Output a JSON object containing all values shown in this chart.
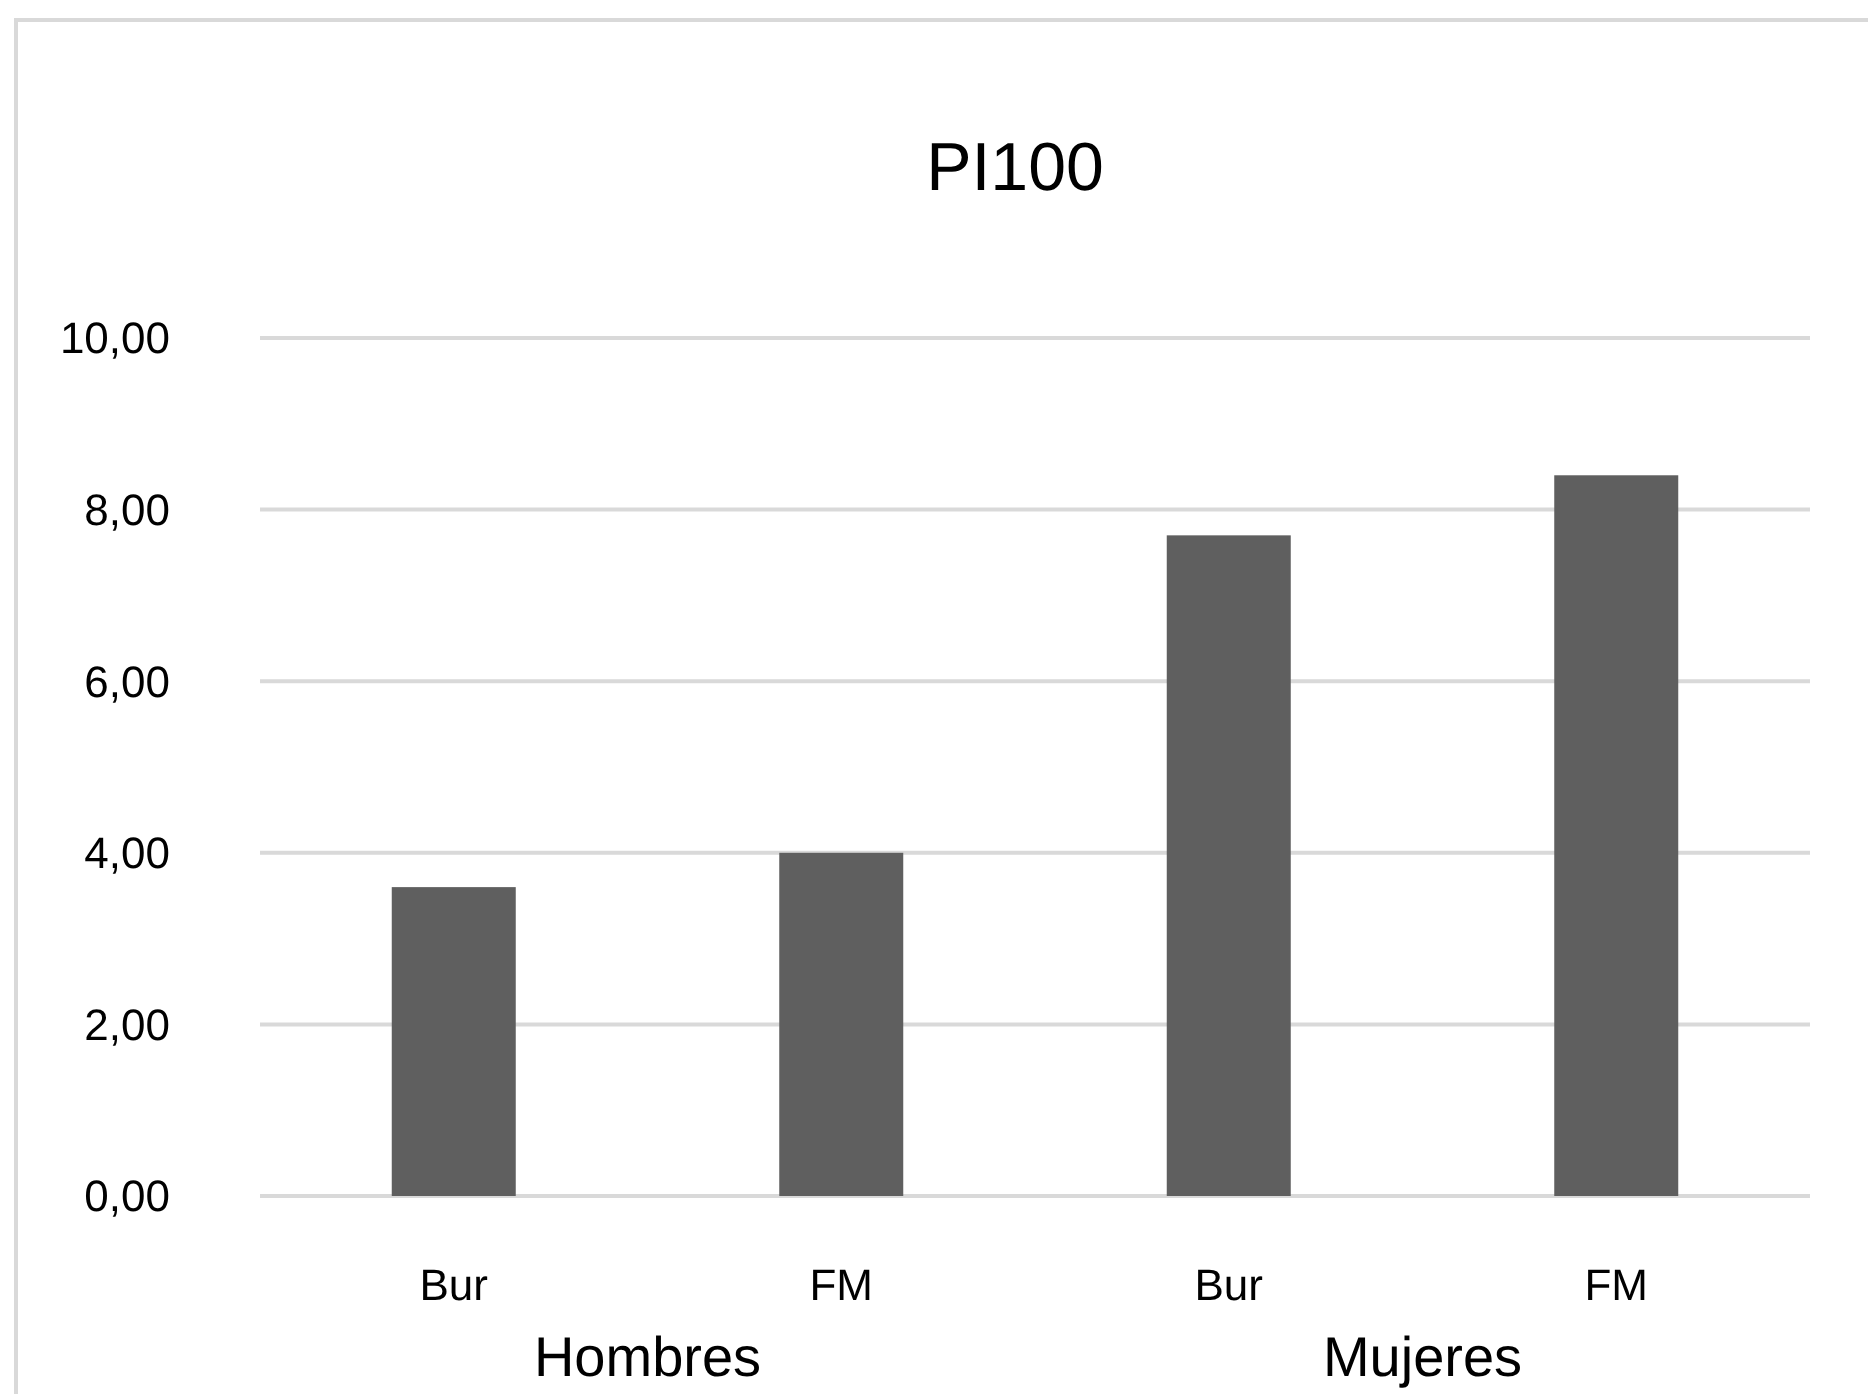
{
  "chart_data": {
    "type": "bar",
    "title": "PI100",
    "categories": [
      "Bur",
      "FM",
      "Bur",
      "FM"
    ],
    "values": [
      3.6,
      4.0,
      7.7,
      8.4
    ],
    "color": "#5f5f5f",
    "ylim": [
      0,
      10
    ],
    "yticks": [
      {
        "value": 0,
        "label": "0,00"
      },
      {
        "value": 2,
        "label": "2,00"
      },
      {
        "value": 4,
        "label": "4,00"
      },
      {
        "value": 6,
        "label": "6,00"
      },
      {
        "value": 8,
        "label": "8,00"
      },
      {
        "value": 10,
        "label": "10,00"
      }
    ],
    "grid": "y",
    "annotations": [
      "Hombres",
      "Mujeres"
    ]
  }
}
